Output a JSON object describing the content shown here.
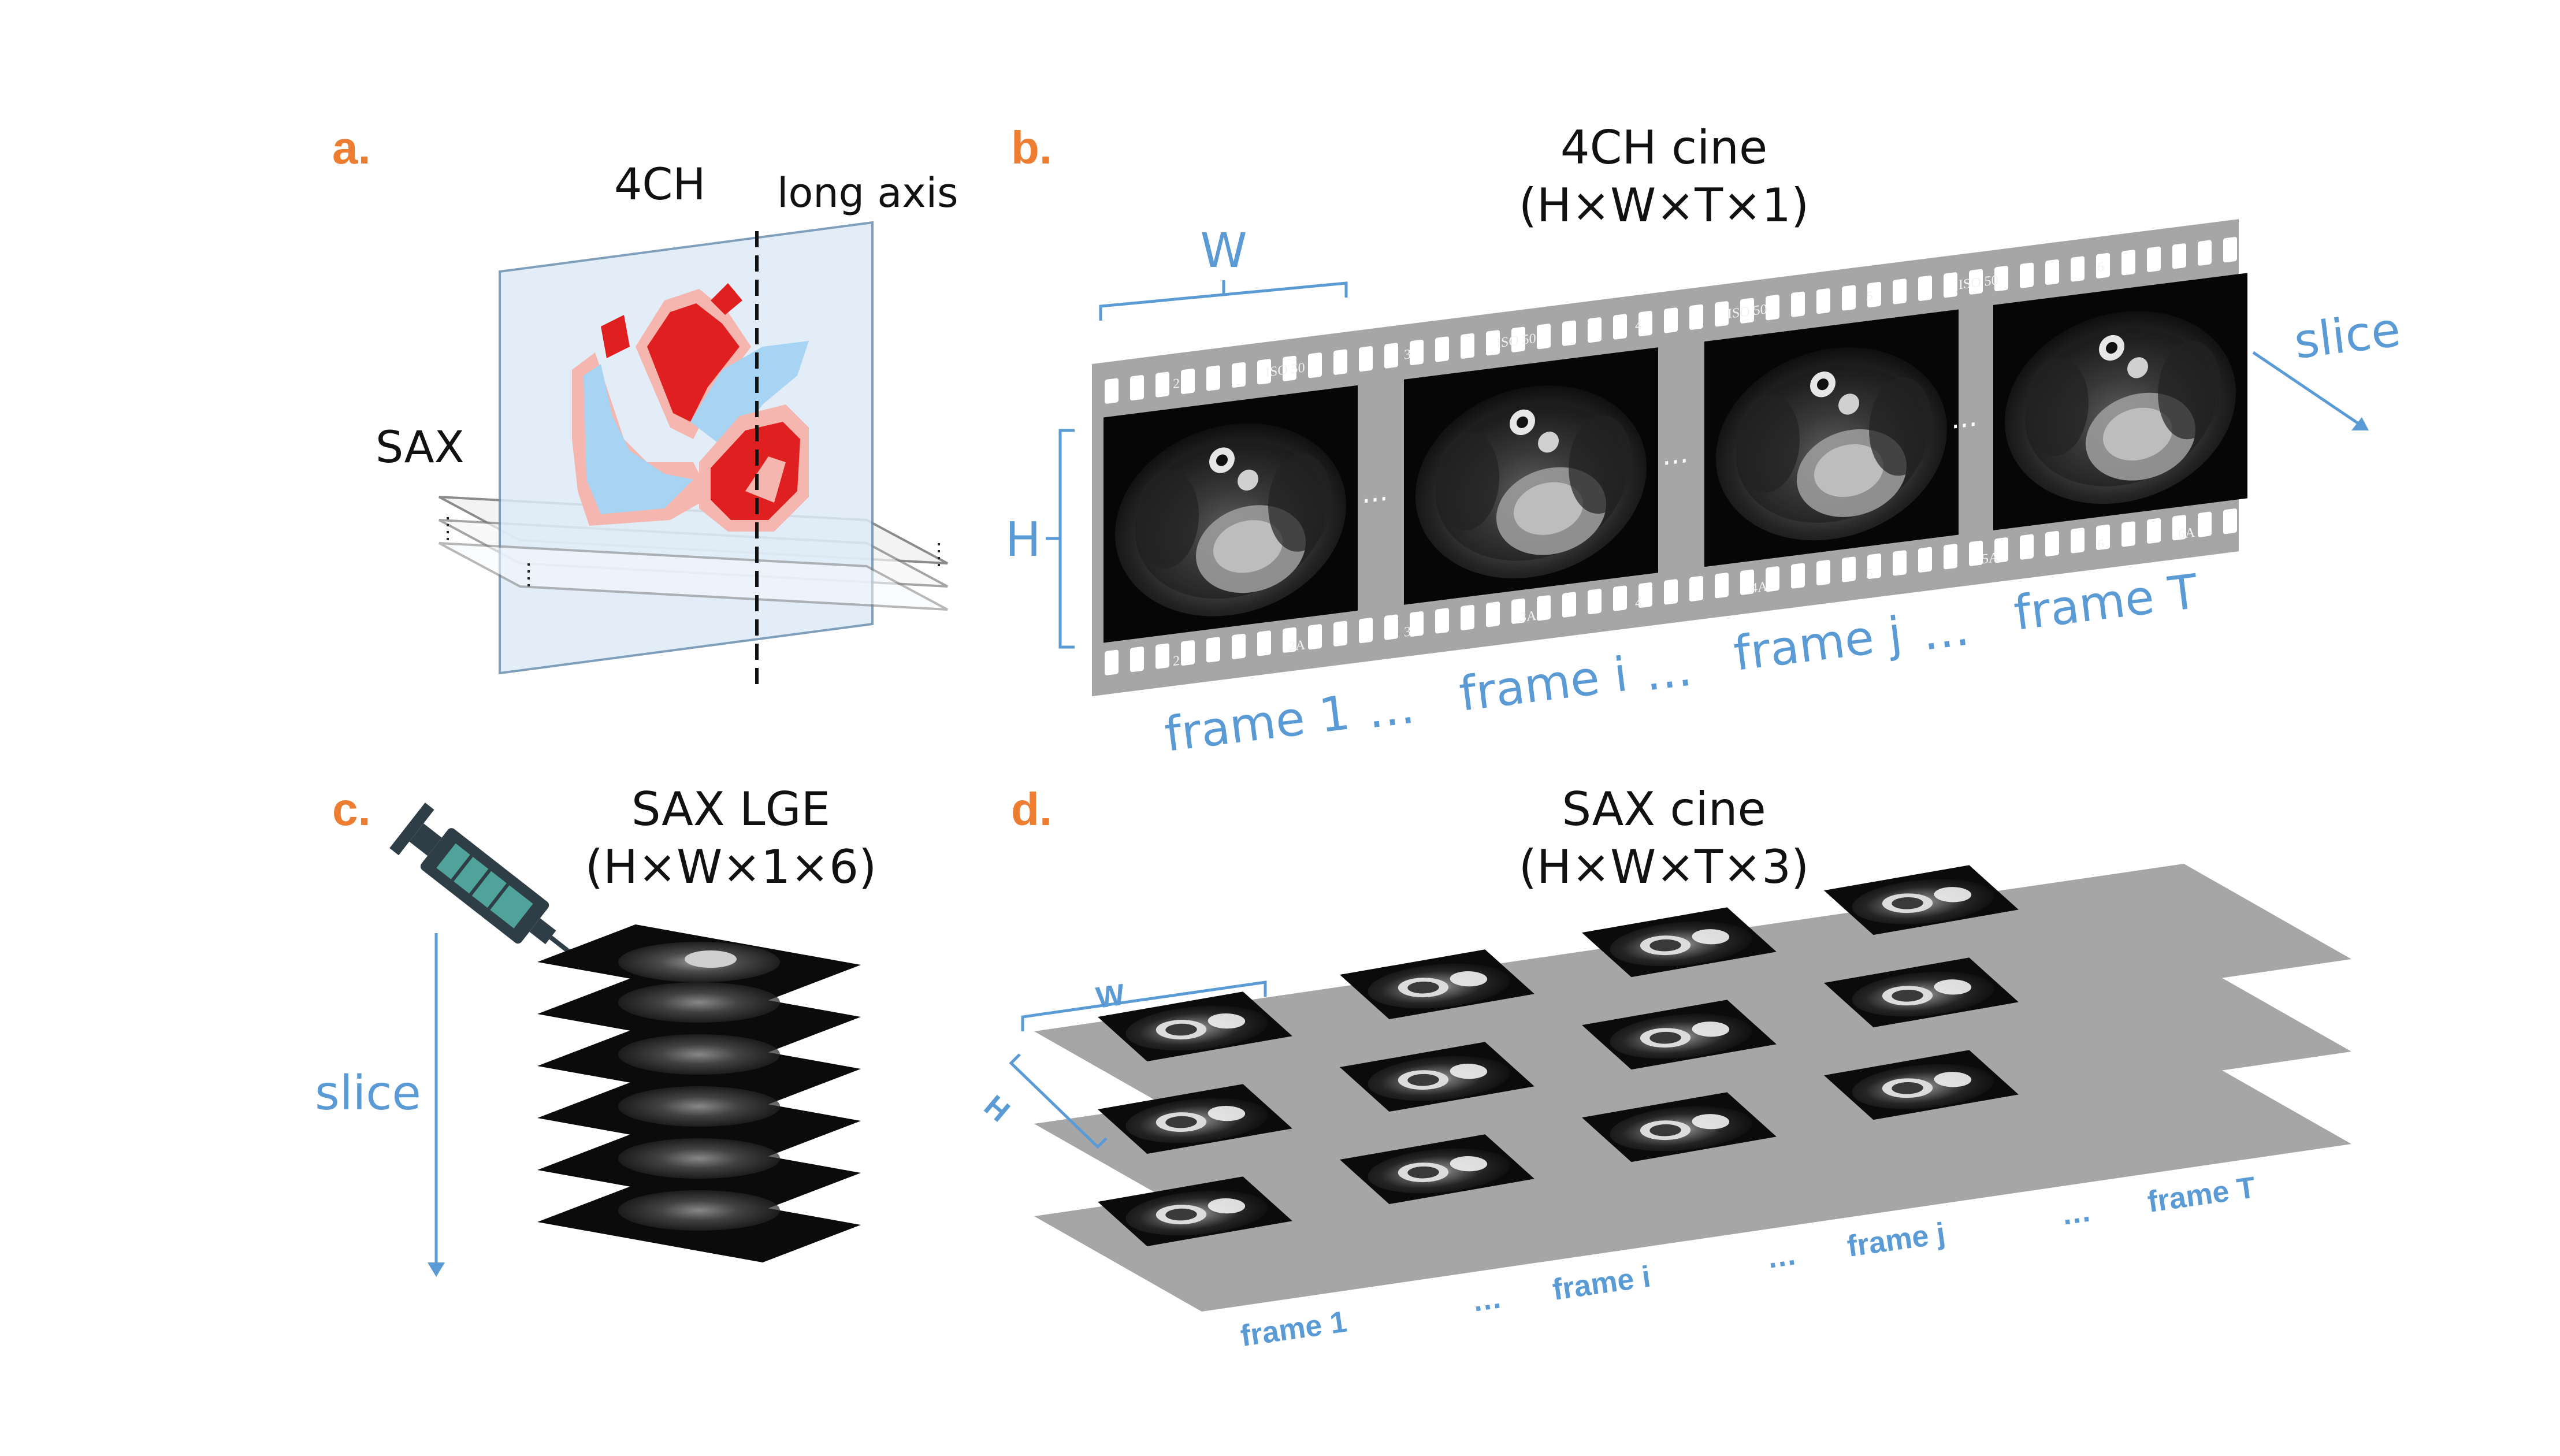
{
  "panels": {
    "a": {
      "letter": "a.",
      "plane_4ch": "4CH",
      "long_axis": "long axis",
      "sax": "SAX"
    },
    "b": {
      "letter": "b.",
      "title_line1": "4CH cine",
      "title_line2": "(H×W×T×1)",
      "dim_w": "W",
      "dim_h": "H",
      "direction": "slice",
      "ellipsis": "...",
      "frame_labels": [
        "frame 1",
        "…",
        "frame i",
        "…",
        "frame j",
        "…",
        "frame T"
      ],
      "film_marks": [
        "2",
        "ISO 50",
        "3",
        "ISO 50",
        "4",
        "ISO 50",
        "5",
        "ISO 50",
        "6"
      ],
      "film_marks_bottom": [
        "2",
        "2A",
        "3",
        "3A",
        "4",
        "4A",
        "5",
        "5A",
        "6",
        "6A"
      ]
    },
    "c": {
      "letter": "c.",
      "title_line1": "SAX LGE",
      "title_line2": "(H×W×1×6)",
      "direction": "slice"
    },
    "d": {
      "letter": "d.",
      "title_line1": "SAX cine",
      "title_line2": "(H×W×T×3)",
      "dim_w": "W",
      "dim_h": "H",
      "ellipsis": "...",
      "frame_labels": [
        "frame 1",
        "…",
        "frame i",
        "…",
        "frame j",
        "…",
        "frame T"
      ]
    }
  },
  "colors": {
    "accent_orange": "#ED7D31",
    "annotation_blue": "#5B9BD5",
    "film_gray": "#A6A6A6",
    "heart_red": "#E02020",
    "heart_pink": "#F4B6AE",
    "blood_blue": "#A6D4F2",
    "plane_fill": "#DDEBF7",
    "syringe_teal": "#4FA39A",
    "syringe_dark": "#2F3E46"
  },
  "icons": {
    "syringe": "syringe-icon",
    "heart": "heart-illustration"
  }
}
